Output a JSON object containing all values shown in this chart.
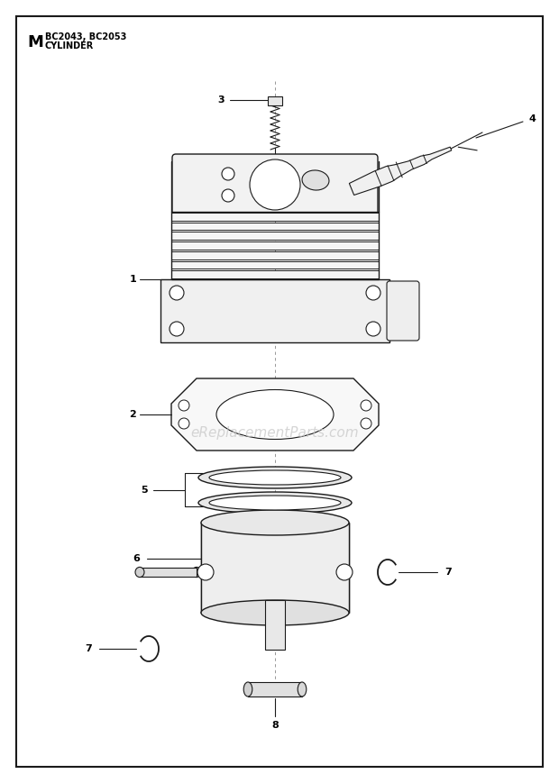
{
  "title_letter": "M",
  "title_model": "BC2043, BC2053",
  "title_sub": "CYLINDER",
  "watermark": "eReplacementParts.com",
  "bg_color": "#ffffff",
  "border_color": "#1a1a1a",
  "line_color": "#1a1a1a",
  "fig_w": 6.2,
  "fig_h": 8.69,
  "dpi": 100
}
